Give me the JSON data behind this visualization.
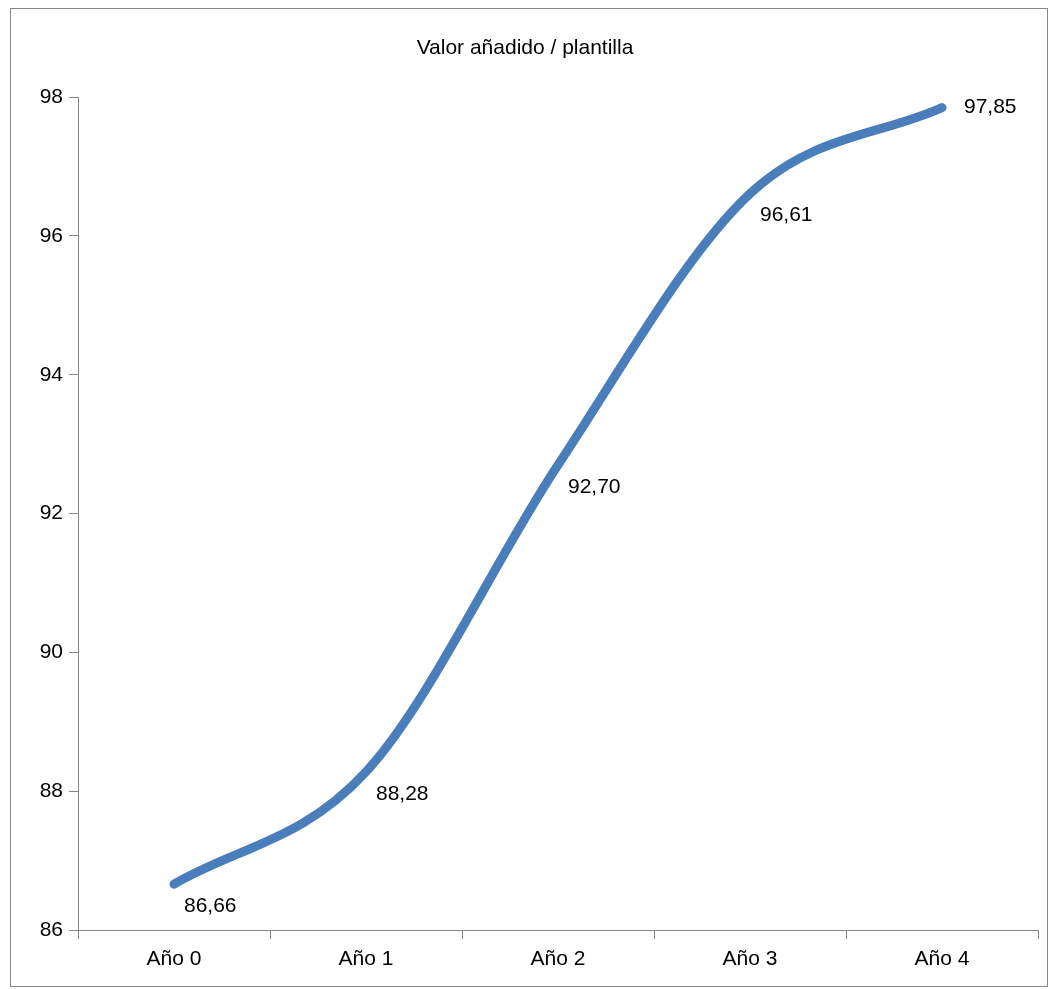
{
  "chart_data": {
    "type": "line",
    "title": "Valor añadido / plantilla",
    "categories": [
      "Año 0",
      "Año 1",
      "Año 2",
      "Año 3",
      "Año 4"
    ],
    "series": [
      {
        "color": "#4a7ebb",
        "values": [
          86.66,
          88.28,
          92.7,
          96.61,
          97.85
        ],
        "value_labels": [
          "86,66",
          "88,28",
          "92,70",
          "96,61",
          "97,85"
        ]
      }
    ],
    "ylim": [
      86,
      98
    ],
    "yticks": [
      86,
      88,
      90,
      92,
      94,
      96,
      98
    ],
    "grid": false,
    "legend": false,
    "marker": "none",
    "line_style": "solid"
  }
}
